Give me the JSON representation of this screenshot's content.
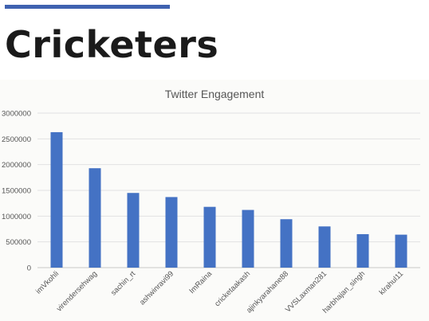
{
  "slide": {
    "title": "Cricketers",
    "accent_color": "#3f62b0"
  },
  "chart_data": {
    "type": "bar",
    "title": "Twitter Engagement",
    "categories": [
      "imVkohli",
      "virendersehwag",
      "sachin_rt",
      "ashwinravi99",
      "ImRaina",
      "cricketaakash",
      "ajinkyarahane88",
      "VVSLaxman281",
      "harbhajan_singh",
      "klrahul11"
    ],
    "values": [
      2630000,
      1930000,
      1450000,
      1370000,
      1180000,
      1120000,
      940000,
      800000,
      650000,
      640000
    ],
    "ylim": [
      0,
      3000000
    ],
    "yticks": [
      "0",
      "500000",
      "1000000",
      "1500000",
      "2000000",
      "2500000",
      "3000000"
    ],
    "xlabel": "",
    "ylabel": "",
    "grid": true,
    "bar_color": "#4472c4"
  }
}
